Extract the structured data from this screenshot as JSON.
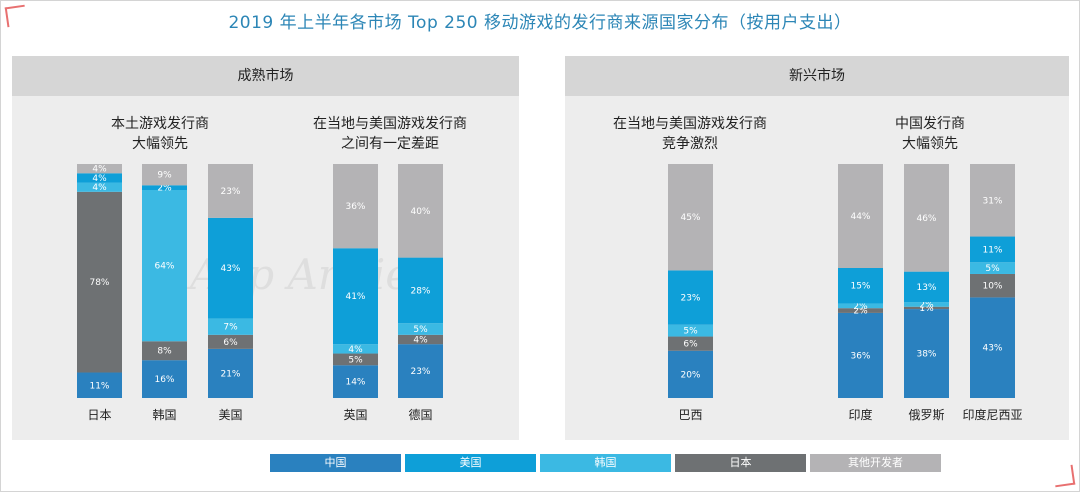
{
  "title": "2019 年上半年各市场 Top 250 移动游戏的发行商来源国家分布（按用户支出）",
  "panels": [
    {
      "label": "成熟市场"
    },
    {
      "label": "新兴市场"
    }
  ],
  "groups": [
    "本土游戏发行商\n大幅领先",
    "在当地与美国游戏发行商\n之间有一定差距",
    "在当地与美国游戏发行商\n竞争激烈",
    "中国发行商\n大幅领先"
  ],
  "watermark": "App Annie",
  "colors": {
    "中国": "#2a81bf",
    "美国": "#0e9fd8",
    "韩国": "#3bb9e3",
    "日本": "#6e7173",
    "其他开发者": "#b4b3b5"
  },
  "chart_data": {
    "type": "bar",
    "stacked": true,
    "normalized": true,
    "title": "2019 年上半年各市场 Top 250 移动游戏的发行商来源国家分布（按用户支出）",
    "categories": [
      "日本",
      "韩国",
      "美国",
      "英国",
      "德国",
      "巴西",
      "印度",
      "俄罗斯",
      "印度尼西亚"
    ],
    "series": [
      {
        "name": "中国",
        "values": [
          11,
          16,
          21,
          14,
          23,
          20,
          36,
          38,
          43
        ],
        "labels": [
          "11%",
          "16%",
          "21%",
          "14%",
          "23%",
          "20%",
          "36%",
          "38%",
          "43%"
        ]
      },
      {
        "name": "日本",
        "values": [
          78,
          8,
          6,
          5,
          4,
          6,
          2,
          1,
          10
        ],
        "labels": [
          "78%",
          "8%",
          "6%",
          "5%",
          "4%",
          "6%",
          "2%",
          "1%",
          "10%"
        ]
      },
      {
        "name": "韩国",
        "values": [
          4,
          64,
          7,
          4,
          5,
          5,
          2,
          2,
          5
        ],
        "labels": [
          "4%",
          "64%",
          "7%",
          "4%",
          "5%",
          "5%",
          "2%",
          "2%",
          "5%"
        ]
      },
      {
        "name": "美国",
        "values": [
          4,
          2,
          43,
          41,
          28,
          23,
          15,
          13,
          11
        ],
        "labels": [
          "4%",
          "2%",
          "43%",
          "41%",
          "28%",
          "23%",
          "15%",
          "13%",
          "11%"
        ]
      },
      {
        "name": "其他开发者",
        "values": [
          4,
          9,
          23,
          36,
          40,
          45,
          44,
          46,
          31
        ],
        "labels": [
          "4%",
          "9%",
          "23%",
          "36%",
          "40%",
          "45%",
          "44%",
          "46%",
          "31%"
        ]
      }
    ],
    "legend": [
      "中国",
      "美国",
      "韩国",
      "日本",
      "其他开发者"
    ],
    "legend_position": "bottom"
  }
}
